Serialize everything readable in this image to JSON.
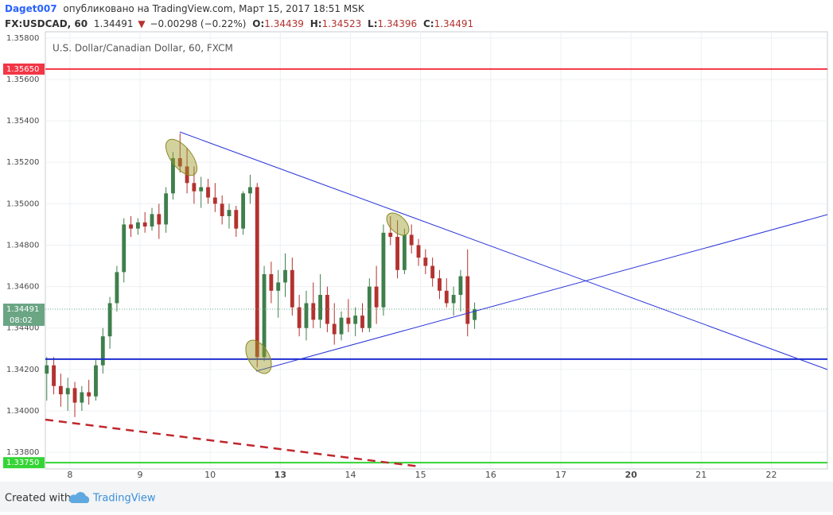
{
  "header": {
    "user": "Daget007",
    "published": "опубликовано на TradingView.com, Март 15, 2017 18:51 MSK",
    "symbol": "FX:USDCAD, 60",
    "price": "1.34491",
    "arrow": "▼",
    "change": "−0.00298 (−0.22%)",
    "o_label": "O:",
    "o": "1.34439",
    "h_label": "H:",
    "h": "1.34523",
    "l_label": "L:",
    "l": "1.34396",
    "c_label": "C:",
    "c": "1.34491"
  },
  "footer": {
    "created": "Created with",
    "brand": "TradingView"
  },
  "chart_data": {
    "type": "candlestick",
    "legend": "U.S. Dollar/Canadian Dollar, 60, FXCM",
    "up_color": "#3f7f4c",
    "down_color": "#b3322f",
    "grid": true,
    "xlim": [
      -0.35,
      10.8
    ],
    "ylim": [
      1.3372,
      1.3583
    ],
    "xticks": [
      {
        "value": 0,
        "label": "8"
      },
      {
        "value": 1,
        "label": "9"
      },
      {
        "value": 2,
        "label": "10"
      },
      {
        "value": 3,
        "label": "13",
        "bold": true
      },
      {
        "value": 4,
        "label": "14"
      },
      {
        "value": 5,
        "label": "15"
      },
      {
        "value": 6,
        "label": "16"
      },
      {
        "value": 7,
        "label": "17"
      },
      {
        "value": 8,
        "label": "20",
        "bold": true
      },
      {
        "value": 9,
        "label": "21"
      },
      {
        "value": 10,
        "label": "22"
      }
    ],
    "yticks": [
      {
        "value": 1.338,
        "label": "1.33800"
      },
      {
        "value": 1.34,
        "label": "1.34000"
      },
      {
        "value": 1.342,
        "label": "1.34200"
      },
      {
        "value": 1.344,
        "label": "1.34400"
      },
      {
        "value": 1.346,
        "label": "1.34600"
      },
      {
        "value": 1.348,
        "label": "1.34800"
      },
      {
        "value": 1.35,
        "label": "1.35000"
      },
      {
        "value": 1.352,
        "label": "1.35200"
      },
      {
        "value": 1.354,
        "label": "1.35400"
      },
      {
        "value": 1.356,
        "label": "1.35600"
      },
      {
        "value": 1.358,
        "label": "1.35800"
      }
    ],
    "hlines": [
      {
        "value": 1.3565,
        "label": "1.35650",
        "color": "#f23645"
      },
      {
        "value": 1.3425,
        "color": "#1f2fd0"
      },
      {
        "value": 1.3375,
        "label": "1.33750",
        "color": "#35d435"
      }
    ],
    "last_price": {
      "value": 1.34491,
      "label": "1.34491",
      "color": "#6aa584"
    },
    "countdown": "08:02",
    "x": [
      -0.33,
      -0.23,
      -0.13,
      -0.03,
      0.07,
      0.17,
      0.27,
      0.37,
      0.47,
      0.57,
      0.67,
      0.77,
      0.87,
      0.97,
      1.07,
      1.17,
      1.27,
      1.37,
      1.47,
      1.57,
      1.67,
      1.77,
      1.87,
      1.97,
      2.07,
      2.17,
      2.27,
      2.37,
      2.47,
      2.57,
      2.67,
      2.77,
      2.87,
      2.97,
      3.07,
      3.17,
      3.27,
      3.37,
      3.47,
      3.57,
      3.67,
      3.77,
      3.87,
      3.97,
      4.07,
      4.17,
      4.27,
      4.37,
      4.47,
      4.57,
      4.67,
      4.77,
      4.87,
      4.97,
      5.07,
      5.17,
      5.27,
      5.37,
      5.47,
      5.57,
      5.67,
      5.77
    ],
    "open": [
      1.3418,
      1.3422,
      1.3412,
      1.3408,
      1.3411,
      1.3404,
      1.3409,
      1.3407,
      1.3422,
      1.3436,
      1.3452,
      1.3467,
      1.349,
      1.3488,
      1.3491,
      1.3489,
      1.3495,
      1.349,
      1.3505,
      1.3522,
      1.3518,
      1.351,
      1.3506,
      1.3508,
      1.3503,
      1.35,
      1.3494,
      1.3497,
      1.3488,
      1.3505,
      1.3508,
      1.3426,
      1.3466,
      1.3458,
      1.3462,
      1.3468,
      1.345,
      1.344,
      1.3452,
      1.3444,
      1.3456,
      1.3442,
      1.3437,
      1.3445,
      1.3442,
      1.3446,
      1.344,
      1.346,
      1.345,
      1.3486,
      1.3484,
      1.3468,
      1.3485,
      1.348,
      1.3474,
      1.347,
      1.3464,
      1.3458,
      1.3452,
      1.3456,
      1.3465,
      1.34439
    ],
    "high": [
      1.3426,
      1.3426,
      1.3418,
      1.3416,
      1.3414,
      1.3412,
      1.3415,
      1.3425,
      1.344,
      1.3455,
      1.347,
      1.3493,
      1.3494,
      1.3493,
      1.3496,
      1.3498,
      1.35,
      1.3508,
      1.3525,
      1.3534,
      1.3527,
      1.3518,
      1.3513,
      1.3512,
      1.351,
      1.3504,
      1.35,
      1.3499,
      1.3506,
      1.3514,
      1.351,
      1.347,
      1.3472,
      1.3468,
      1.3476,
      1.3474,
      1.3456,
      1.3458,
      1.3462,
      1.3466,
      1.346,
      1.3452,
      1.3448,
      1.3454,
      1.345,
      1.3452,
      1.3464,
      1.347,
      1.349,
      1.3494,
      1.3492,
      1.3488,
      1.349,
      1.3483,
      1.3478,
      1.3474,
      1.3468,
      1.3464,
      1.346,
      1.3468,
      1.3478,
      1.34523
    ],
    "low": [
      1.3405,
      1.3408,
      1.3402,
      1.34,
      1.3397,
      1.34,
      1.3403,
      1.3405,
      1.3418,
      1.343,
      1.3448,
      1.3462,
      1.3484,
      1.3485,
      1.3486,
      1.3487,
      1.3483,
      1.3486,
      1.3502,
      1.3515,
      1.3505,
      1.35,
      1.3498,
      1.35,
      1.3496,
      1.349,
      1.3488,
      1.3484,
      1.3485,
      1.35,
      1.3421,
      1.3424,
      1.3452,
      1.3445,
      1.3455,
      1.3446,
      1.3436,
      1.3434,
      1.344,
      1.344,
      1.3438,
      1.3432,
      1.3434,
      1.3438,
      1.3436,
      1.3438,
      1.3438,
      1.3442,
      1.3446,
      1.348,
      1.3464,
      1.3466,
      1.3476,
      1.347,
      1.3466,
      1.346,
      1.3454,
      1.345,
      1.3446,
      1.3448,
      1.3436,
      1.34396
    ],
    "close": [
      1.3422,
      1.3412,
      1.3408,
      1.3411,
      1.3404,
      1.3409,
      1.3407,
      1.3422,
      1.3436,
      1.3452,
      1.3467,
      1.349,
      1.3488,
      1.3491,
      1.3489,
      1.3495,
      1.349,
      1.3505,
      1.3522,
      1.3518,
      1.351,
      1.3506,
      1.3508,
      1.3503,
      1.35,
      1.3494,
      1.3497,
      1.3488,
      1.3505,
      1.3508,
      1.3426,
      1.3466,
      1.3458,
      1.3462,
      1.3468,
      1.345,
      1.344,
      1.3452,
      1.3444,
      1.3456,
      1.3442,
      1.3437,
      1.3445,
      1.3442,
      1.3446,
      1.344,
      1.346,
      1.345,
      1.3486,
      1.3484,
      1.3468,
      1.3485,
      1.348,
      1.3474,
      1.347,
      1.3464,
      1.3458,
      1.3452,
      1.3456,
      1.3465,
      1.3442,
      1.34491
    ]
  }
}
